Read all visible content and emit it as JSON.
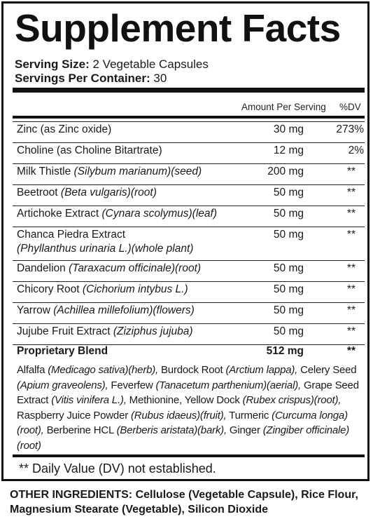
{
  "title": "Supplement Facts",
  "serving_size_label": "Serving Size:",
  "serving_size_value": " 2 Vegetable Capsules",
  "servings_per_container_label": "Servings Per Container:",
  "servings_per_container_value": " 30",
  "column_headers": {
    "amount": "Amount Per Serving",
    "dv": "%DV"
  },
  "rows": [
    {
      "name": "Zinc (as Zinc oxide)",
      "latin": "",
      "part": "",
      "amount": "30 mg",
      "dv": "273%"
    },
    {
      "name": "Choline (as Choline Bitartrate)",
      "latin": "",
      "part": "",
      "amount": "12 mg",
      "dv": "2%"
    },
    {
      "name": "Milk Thistle ",
      "latin": "(Silybum marianum)",
      "part": "(seed)",
      "amount": "200 mg",
      "dv": "**"
    },
    {
      "name": "Beetroot ",
      "latin": "(Beta vulgaris)",
      "part": "(root)",
      "amount": "50 mg",
      "dv": "**"
    },
    {
      "name": "Artichoke Extract ",
      "latin": "(Cynara scolymus)",
      "part": "(leaf)",
      "amount": "50 mg",
      "dv": "**"
    },
    {
      "name": "Chanca Piedra Extract",
      "latin": "(Phyllanthus urinaria L.)",
      "part": "(whole plant)",
      "amount": "50 mg",
      "dv": "**"
    },
    {
      "name": "Dandelion ",
      "latin": "(Taraxacum officinale)",
      "part": "(root)",
      "amount": "50 mg",
      "dv": "**"
    },
    {
      "name": "Chicory Root ",
      "latin": "(Cichorium intybus L.)",
      "part": "",
      "amount": "50 mg",
      "dv": "**"
    },
    {
      "name": "Yarrow ",
      "latin": "(Achillea millefolium)",
      "part": "(flowers)",
      "amount": "50 mg",
      "dv": "**"
    },
    {
      "name": "Jujube Fruit Extract ",
      "latin": "(Ziziphus jujuba)",
      "part": "",
      "amount": "50 mg",
      "dv": "**"
    }
  ],
  "blend": {
    "name": "Proprietary Blend",
    "amount": "512 mg",
    "dv": "**",
    "parts": [
      "Alfalfa ",
      "(Medicago sativa)(herb),",
      " Burdock Root ",
      "(Arctium lappa),",
      " Celery Seed ",
      "(Apium graveolens),",
      " Feverfew ",
      "(Tanacetum parthenium)(aerial),",
      " Grape Seed Extract ",
      "(Vitis vinifera L.),",
      " Methionine, Yellow Dock ",
      "(Rubex crispus)(root),",
      " Raspberry Juice Powder ",
      "(Rubus idaeus)(fruit),",
      " Turmeric ",
      "(Curcuma longa)(root),",
      " Berberine HCL ",
      "(Berberis aristata)(bark),",
      " Ginger ",
      "(Zingiber officinale)(root)"
    ]
  },
  "footnote": "** Daily Value (DV) not established.",
  "other_ingredients_label": "OTHER INGREDIENTS:",
  "other_ingredients_text": " Cellulose (Vegetable Capsule), Rice Flour, Magnesium Stearate (Vegetable), Silicon Dioxide"
}
